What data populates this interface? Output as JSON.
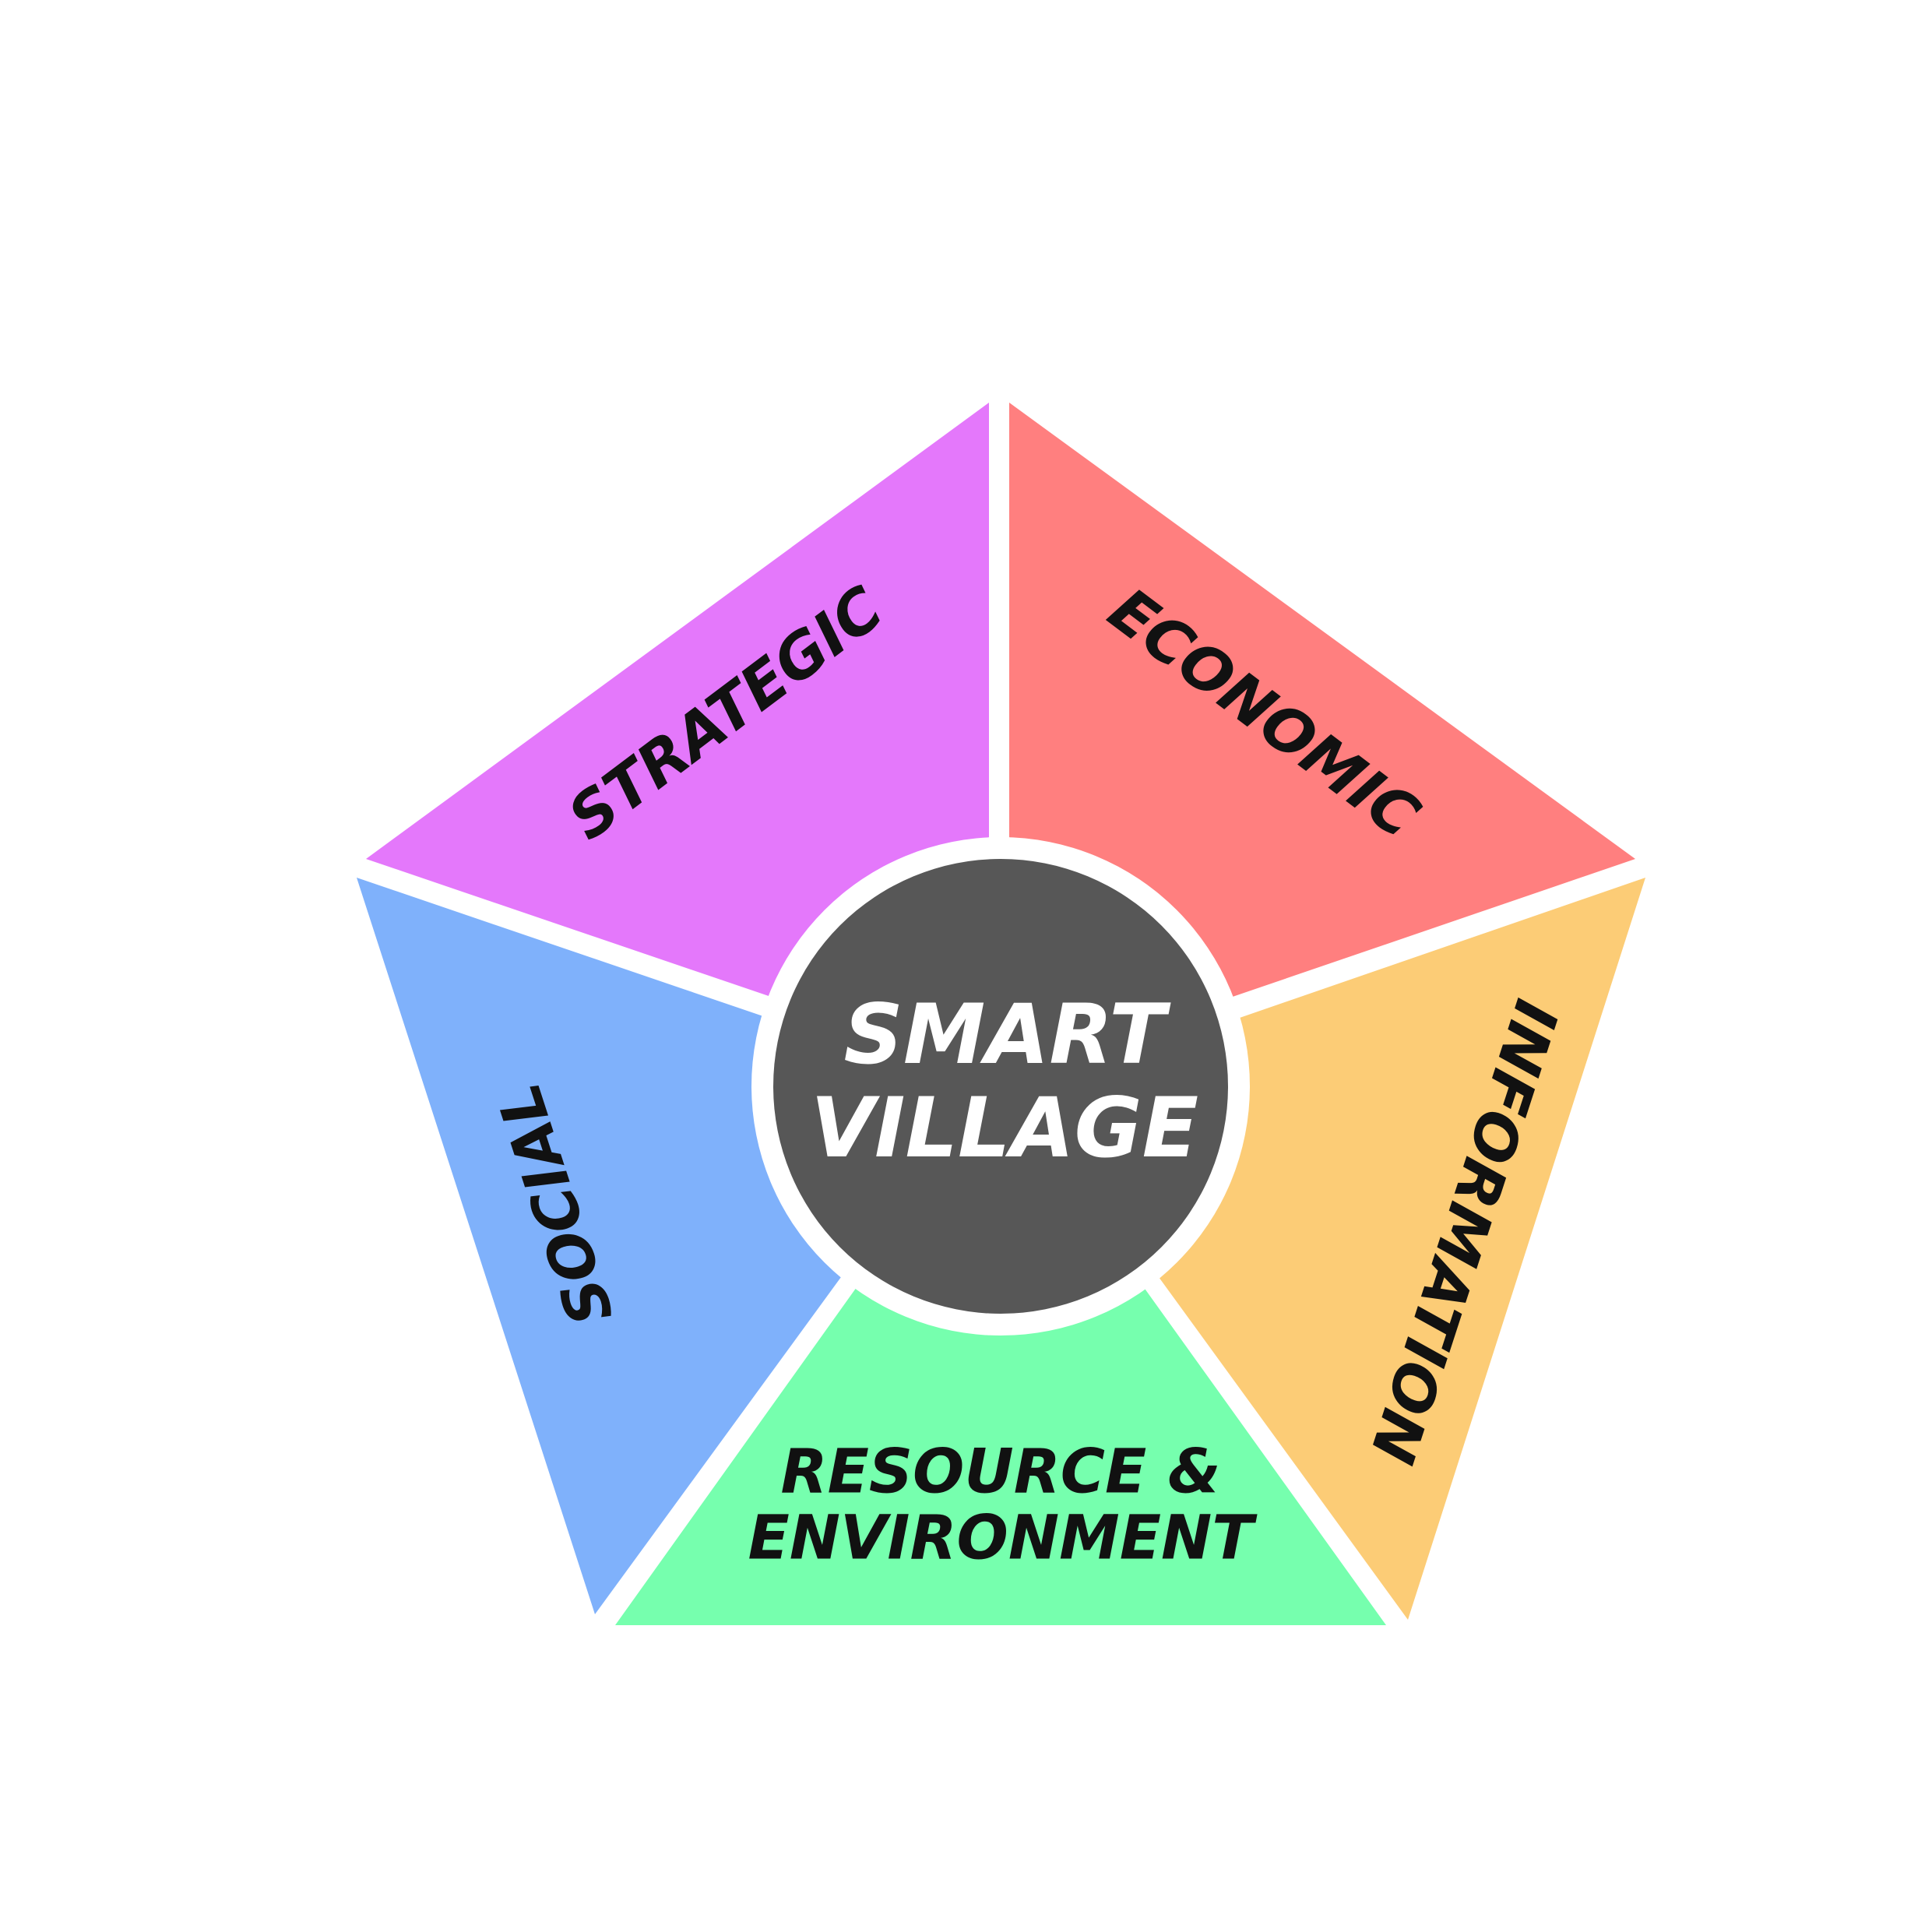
{
  "center": {
    "line1": "SMART",
    "line2": "VILLAGE",
    "color": "#575757"
  },
  "segments": {
    "strategic": {
      "label": "STRATEGIC",
      "color": "#E478FB"
    },
    "economic": {
      "label": "ECONOMIC",
      "color": "#FF7F7F"
    },
    "information": {
      "label": "INFORMATION",
      "color": "#FCCC76"
    },
    "resource": {
      "line1": "RESOURCE &",
      "line2": "ENVIRONMENT",
      "color": "#76FFAE"
    },
    "social": {
      "label": "SOCIAL",
      "color": "#7FB1FB"
    }
  }
}
